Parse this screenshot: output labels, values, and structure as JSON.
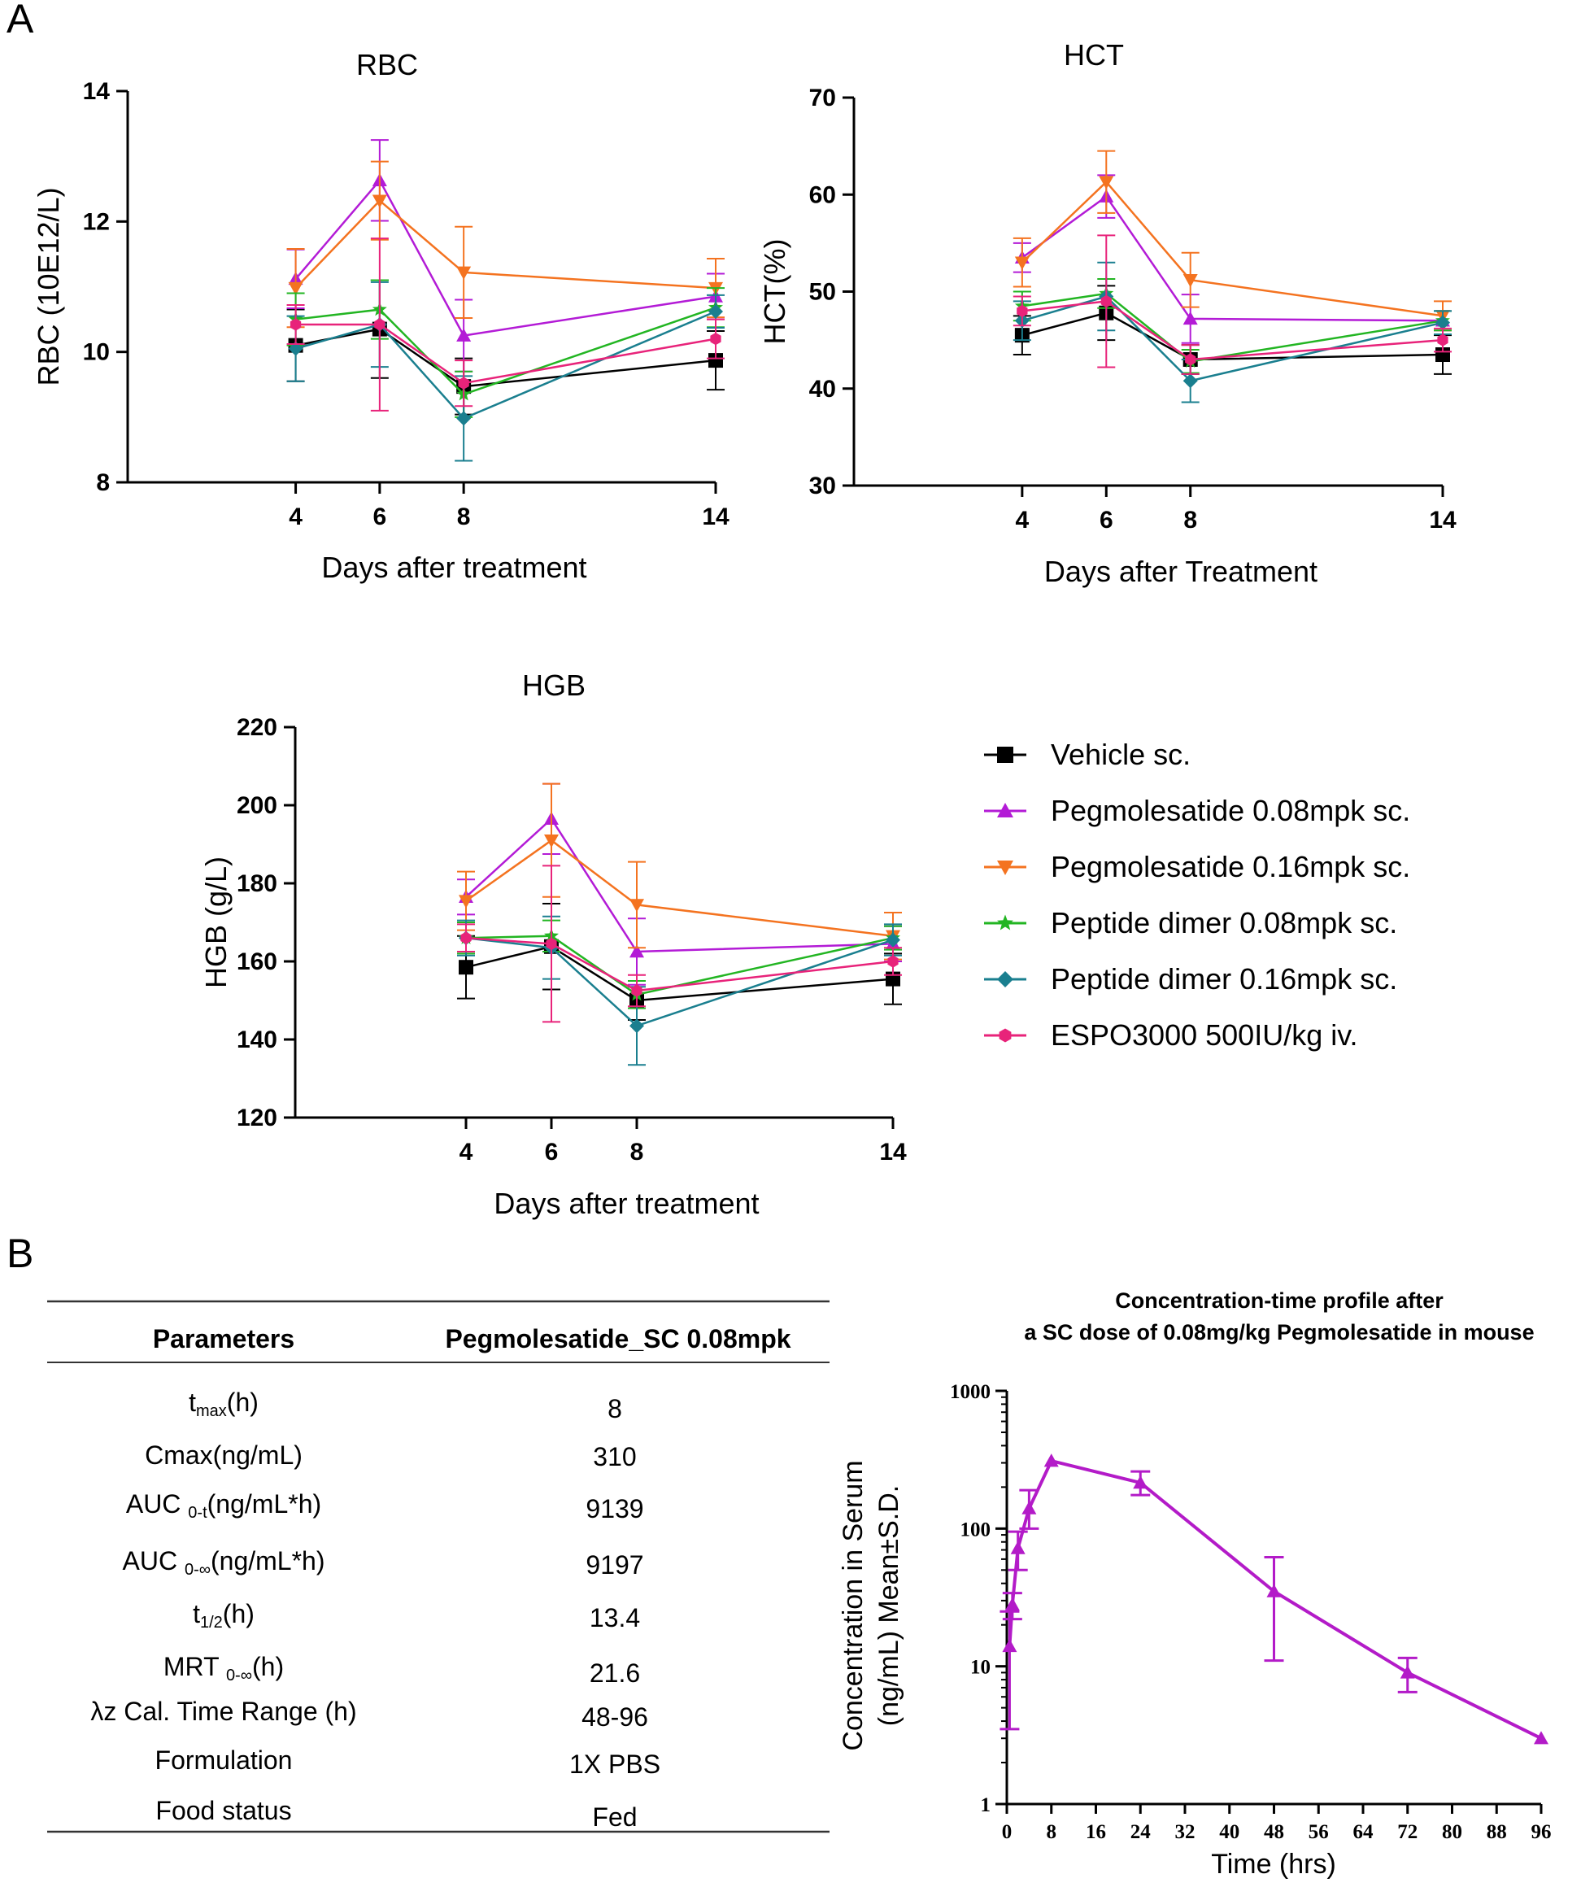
{
  "panels": {
    "a": "A",
    "b": "B"
  },
  "chart_data": [
    {
      "id": "rbc",
      "type": "line",
      "title": "RBC",
      "xlabel": "Days after treatment",
      "ylabel": "RBC (10E12/L)",
      "xlim": [
        0,
        14
      ],
      "ylim": [
        8,
        14
      ],
      "xticks": [
        4,
        6,
        8,
        14
      ],
      "yticks": [
        8,
        10,
        12,
        14
      ],
      "x": [
        4,
        6,
        8,
        14
      ],
      "series": [
        {
          "key": "vehicle",
          "values": [
            10.1,
            10.35,
            9.47,
            9.87
          ],
          "err": [
            0.55,
            0.75,
            0.43,
            0.45
          ]
        },
        {
          "key": "peg008",
          "values": [
            11.12,
            12.63,
            10.25,
            10.85
          ],
          "err": [
            0.45,
            0.62,
            0.55,
            0.35
          ]
        },
        {
          "key": "peg016",
          "values": [
            10.98,
            12.32,
            11.22,
            10.98
          ],
          "err": [
            0.6,
            0.6,
            0.7,
            0.45
          ]
        },
        {
          "key": "pd008",
          "values": [
            10.5,
            10.65,
            9.35,
            10.68
          ],
          "err": [
            0.4,
            0.45,
            0.35,
            0.3
          ]
        },
        {
          "key": "pd016",
          "values": [
            10.05,
            10.42,
            8.98,
            10.62
          ],
          "err": [
            0.5,
            0.65,
            0.65,
            0.25
          ]
        },
        {
          "key": "espo",
          "values": [
            10.42,
            10.42,
            9.52,
            10.2
          ],
          "err": [
            0.3,
            1.32,
            0.35,
            0.3
          ]
        }
      ]
    },
    {
      "id": "hct",
      "type": "line",
      "title": "HCT",
      "xlabel": "Days after Treatment",
      "ylabel": "HCT(%)",
      "xlim": [
        0,
        14
      ],
      "ylim": [
        30,
        70
      ],
      "xticks": [
        4,
        6,
        8,
        14
      ],
      "yticks": [
        30,
        40,
        50,
        60,
        70
      ],
      "x": [
        4,
        6,
        8,
        14
      ],
      "series": [
        {
          "key": "vehicle",
          "values": [
            45.5,
            47.8,
            43.0,
            43.5
          ],
          "err": [
            2.0,
            2.8,
            1.5,
            2.0
          ]
        },
        {
          "key": "peg008",
          "values": [
            53.5,
            59.8,
            47.2,
            47.0
          ],
          "err": [
            1.5,
            2.2,
            2.5,
            1.0
          ]
        },
        {
          "key": "peg016",
          "values": [
            53.0,
            61.3,
            51.2,
            47.5
          ],
          "err": [
            2.5,
            3.2,
            2.8,
            1.5
          ]
        },
        {
          "key": "pd008",
          "values": [
            48.5,
            49.8,
            42.8,
            47.0
          ],
          "err": [
            1.5,
            1.5,
            1.2,
            1.0
          ]
        },
        {
          "key": "pd016",
          "values": [
            47.0,
            49.5,
            40.8,
            46.8
          ],
          "err": [
            2.0,
            3.5,
            2.2,
            1.2
          ]
        },
        {
          "key": "espo",
          "values": [
            48.0,
            49.0,
            43.0,
            45.0
          ],
          "err": [
            1.5,
            6.8,
            1.5,
            1.2
          ]
        }
      ]
    },
    {
      "id": "hgb",
      "type": "line",
      "title": "HGB",
      "xlabel": "Days after treatment",
      "ylabel": "HGB (g/L)",
      "xlim": [
        0,
        14
      ],
      "ylim": [
        120,
        220
      ],
      "xticks": [
        4,
        6,
        8,
        14
      ],
      "yticks": [
        120,
        140,
        160,
        180,
        200,
        220
      ],
      "x": [
        4,
        6,
        8,
        14
      ],
      "series": [
        {
          "key": "vehicle",
          "values": [
            158.5,
            163.8,
            150.0,
            155.5
          ],
          "err": [
            8.0,
            11.0,
            5.0,
            6.5
          ]
        },
        {
          "key": "peg008",
          "values": [
            176.5,
            196.5,
            162.5,
            164.5
          ],
          "err": [
            4.5,
            9.0,
            8.5,
            4.5
          ]
        },
        {
          "key": "peg016",
          "values": [
            175.5,
            191.0,
            174.5,
            166.5
          ],
          "err": [
            7.5,
            14.5,
            11.0,
            6.0
          ]
        },
        {
          "key": "pd008",
          "values": [
            166.0,
            166.5,
            151.5,
            166.0
          ],
          "err": [
            4.0,
            4.0,
            3.5,
            3.0
          ]
        },
        {
          "key": "pd016",
          "values": [
            166.0,
            163.5,
            143.5,
            165.5
          ],
          "err": [
            4.5,
            8.0,
            10.0,
            4.0
          ]
        },
        {
          "key": "espo",
          "values": [
            166.0,
            164.5,
            152.5,
            160.0
          ],
          "err": [
            3.5,
            20.0,
            4.0,
            3.5
          ]
        }
      ]
    },
    {
      "id": "pk",
      "type": "line",
      "title_lines": [
        "Concentration-time profile after",
        "a SC dose of 0.08mg/kg Pegmolesatide in mouse"
      ],
      "xlabel": "Time (hrs)",
      "ylabel_lines": [
        "Concentration in Serum",
        "(ng/mL) Mean±S.D."
      ],
      "yscale": "log",
      "xlim": [
        0,
        96
      ],
      "ylim": [
        1,
        1000
      ],
      "xticks": [
        0,
        8,
        16,
        24,
        32,
        40,
        48,
        56,
        64,
        72,
        80,
        88,
        96
      ],
      "yticks": [
        1,
        10,
        100,
        1000
      ],
      "color": "#b31bc8",
      "points": [
        {
          "x": 0.5,
          "y": 14,
          "lo": 3.5,
          "hi": 25
        },
        {
          "x": 1,
          "y": 28,
          "lo": 22,
          "hi": 34
        },
        {
          "x": 2,
          "y": 72,
          "lo": 50,
          "hi": 95
        },
        {
          "x": 4,
          "y": 140,
          "lo": 100,
          "hi": 190
        },
        {
          "x": 8,
          "y": 310,
          "lo": null,
          "hi": null
        },
        {
          "x": 24,
          "y": 215,
          "lo": 175,
          "hi": 260
        },
        {
          "x": 48,
          "y": 35,
          "lo": 11,
          "hi": 62
        },
        {
          "x": 72,
          "y": 9,
          "lo": 6.5,
          "hi": 11.5
        },
        {
          "x": 96,
          "y": 3,
          "lo": null,
          "hi": null
        }
      ]
    }
  ],
  "legend": [
    {
      "key": "vehicle",
      "label": "Vehicle sc.",
      "color": "#000000",
      "marker": "square"
    },
    {
      "key": "peg008",
      "label": "Pegmolesatide 0.08mpk sc.",
      "color": "#b31bd6",
      "marker": "triangle-up"
    },
    {
      "key": "peg016",
      "label": "Pegmolesatide 0.16mpk sc.",
      "color": "#f47320",
      "marker": "triangle-down"
    },
    {
      "key": "pd008",
      "label": "Peptide dimer  0.08mpk sc.",
      "color": "#22b522",
      "marker": "star"
    },
    {
      "key": "pd016",
      "label": "Peptide dimer  0.16mpk sc.",
      "color": "#1a7f8f",
      "marker": "diamond"
    },
    {
      "key": "espo",
      "label": "ESPO3000  500IU/kg iv.",
      "color": "#e8237a",
      "marker": "hexagon"
    }
  ],
  "table": {
    "headers": [
      "Parameters",
      "Pegmolesatide_SC 0.08mpk"
    ],
    "rows": [
      {
        "pre": "t",
        "sub": "max",
        "post": "(h)",
        "value": "8"
      },
      {
        "pre": "Cmax(ng/mL)",
        "sub": "",
        "post": "",
        "value": "310"
      },
      {
        "pre": "AUC ",
        "sub": "0-t",
        "post": "(ng/mL*h)",
        "value": "9139"
      },
      {
        "pre": "AUC ",
        "sub": "0-∞",
        "post": "(ng/mL*h)",
        "value": "9197"
      },
      {
        "pre": "t",
        "sub": "1/2",
        "post": "(h)",
        "value": "13.4"
      },
      {
        "pre": "MRT ",
        "sub": "0-∞",
        "post": "(h)",
        "value": "21.6"
      },
      {
        "pre": "λz Cal. Time Range (h)",
        "sub": "",
        "post": "",
        "value": "48-96"
      },
      {
        "pre": "Formulation",
        "sub": "",
        "post": "",
        "value": "1X PBS"
      },
      {
        "pre": "Food status",
        "sub": "",
        "post": "",
        "value": "Fed"
      }
    ]
  }
}
